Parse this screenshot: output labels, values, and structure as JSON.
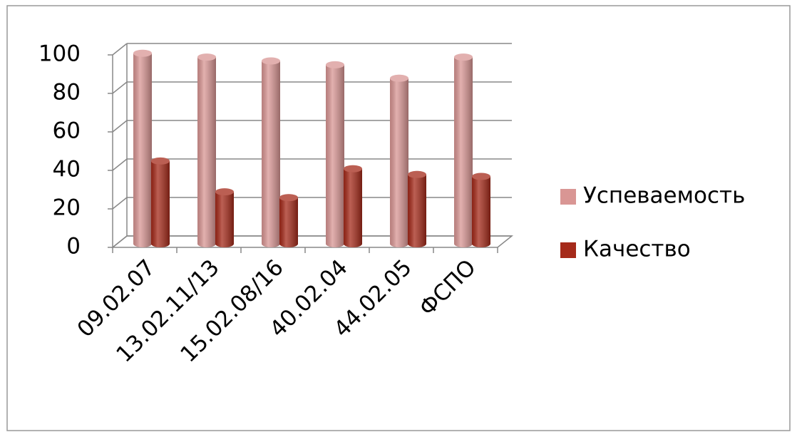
{
  "chart_data": {
    "type": "bar",
    "categories": [
      "09.02.07",
      "13.02.11/13",
      "15.02.08/16",
      "40.02.04",
      "44.02.05",
      "ФСПО"
    ],
    "series": [
      {
        "name": "Успеваемость",
        "color": "#d99694",
        "values": [
          99,
          97,
          95,
          93,
          86,
          97
        ]
      },
      {
        "name": "Качество",
        "color": "#a52a1a",
        "values": [
          43,
          27,
          24,
          39,
          36,
          35
        ]
      }
    ],
    "ylim": [
      0,
      100
    ],
    "yticks": [
      0,
      20,
      40,
      60,
      80,
      100
    ],
    "grid": true,
    "legend": "right"
  }
}
